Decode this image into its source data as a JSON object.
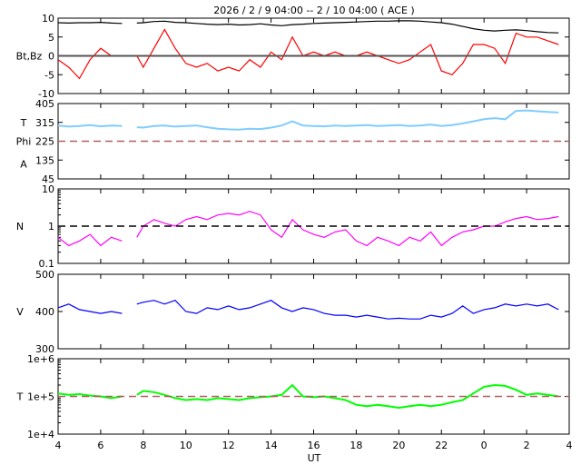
{
  "title": "2026 /  2 /  9   04:00 -- 2 / 10   04:00 ( ACE )",
  "chart_data": {
    "type": "line",
    "xlabel": "UT",
    "x_ticks": [
      "4",
      "6",
      "8",
      "10",
      "12",
      "14",
      "16",
      "18",
      "20",
      "22",
      "0",
      "2",
      "4"
    ],
    "xlim": [
      4,
      28
    ],
    "x": [
      4,
      4.5,
      5,
      5.5,
      6,
      6.5,
      7,
      7.7,
      8,
      8.5,
      9,
      9.5,
      10,
      10.5,
      11,
      11.5,
      12,
      12.5,
      13,
      13.5,
      14,
      14.5,
      15,
      15.5,
      16,
      16.5,
      17,
      17.5,
      18,
      18.5,
      19,
      19.5,
      20,
      20.5,
      21,
      21.5,
      22,
      22.5,
      23,
      23.5,
      24,
      24.5,
      25,
      25.5,
      26,
      26.5,
      27,
      27.5
    ],
    "gap_after_x": 7,
    "panels": [
      {
        "ylabel": "Bt,Bz",
        "yticks": [
          "10",
          "5",
          "0",
          "-5",
          "-10"
        ],
        "ylim": [
          -10,
          10
        ],
        "log": false,
        "ref": 0,
        "ref_style": "solid",
        "ref_color": "#555555",
        "series": [
          {
            "name": "Bt",
            "color": "#000000",
            "values": [
              8.8,
              8.7,
              8.8,
              8.8,
              8.9,
              8.7,
              8.6,
              8.7,
              8.8,
              9.1,
              9.2,
              8.9,
              8.8,
              8.6,
              8.4,
              8.3,
              8.4,
              8.2,
              8.3,
              8.5,
              8.2,
              8.0,
              8.3,
              8.4,
              8.6,
              8.7,
              8.8,
              8.9,
              9.0,
              9.1,
              9.2,
              9.2,
              9.3,
              9.3,
              9.2,
              9.0,
              8.8,
              8.4,
              7.8,
              7.2,
              6.8,
              6.6,
              6.8,
              6.9,
              6.7,
              6.4,
              6.2,
              6.1
            ]
          },
          {
            "name": "Bz",
            "color": "#ff0000",
            "values": [
              -1,
              -3,
              -6,
              -1,
              2,
              0,
              0,
              0,
              -3,
              2,
              7,
              2,
              -2,
              -3,
              -2,
              -4,
              -3,
              -4,
              -1,
              -3,
              1,
              -1,
              5,
              0,
              1,
              0,
              1,
              0,
              0,
              1,
              0,
              -1,
              -2,
              -1,
              1,
              3,
              -4,
              -5,
              -2,
              3,
              3,
              2,
              -2,
              6,
              5,
              5,
              4,
              3
            ]
          }
        ]
      },
      {
        "ylabel": [
          "T",
          "Phi",
          "A"
        ],
        "yticks": [
          "405",
          "315",
          "225",
          "135",
          "45"
        ],
        "ylim": [
          45,
          405
        ],
        "log": false,
        "ref": 225,
        "ref_style": "dashed",
        "ref_color": "#b06060",
        "series": [
          {
            "name": "Phi",
            "color": "#80ccff",
            "values": [
              300,
              295,
              298,
              302,
              296,
              300,
              298,
              292,
              290,
              298,
              300,
              295,
              298,
              300,
              292,
              285,
              282,
              280,
              285,
              283,
              290,
              300,
              320,
              300,
              298,
              296,
              300,
              298,
              300,
              302,
              298,
              300,
              302,
              298,
              300,
              305,
              298,
              302,
              310,
              320,
              330,
              335,
              330,
              370,
              372,
              368,
              365,
              362
            ]
          }
        ]
      },
      {
        "ylabel": "N",
        "yticks": [
          "10",
          "1",
          "0.1"
        ],
        "ylim": [
          0.1,
          10
        ],
        "log": true,
        "ref": 1,
        "ref_style": "dashed",
        "ref_color": "#000000",
        "series": [
          {
            "name": "N",
            "color": "#ff00ff",
            "values": [
              0.5,
              0.3,
              0.4,
              0.6,
              0.3,
              0.5,
              0.4,
              0.5,
              1,
              1.5,
              1.2,
              1,
              1.5,
              1.8,
              1.5,
              2,
              2.2,
              2,
              2.5,
              2,
              0.8,
              0.5,
              1.5,
              0.8,
              0.6,
              0.5,
              0.7,
              0.8,
              0.4,
              0.3,
              0.5,
              0.4,
              0.3,
              0.5,
              0.4,
              0.7,
              0.3,
              0.5,
              0.7,
              0.8,
              1,
              1,
              1.3,
              1.6,
              1.8,
              1.5,
              1.6,
              1.8
            ]
          }
        ]
      },
      {
        "ylabel": "V",
        "yticks": [
          "500",
          "400",
          "300"
        ],
        "ylim": [
          300,
          500
        ],
        "log": false,
        "ref": null,
        "series": [
          {
            "name": "V",
            "color": "#0000ff",
            "values": [
              410,
              420,
              405,
              400,
              395,
              400,
              395,
              420,
              425,
              430,
              420,
              430,
              400,
              395,
              410,
              405,
              415,
              405,
              410,
              420,
              430,
              410,
              400,
              410,
              405,
              395,
              390,
              390,
              385,
              390,
              385,
              380,
              382,
              380,
              380,
              390,
              385,
              395,
              415,
              395,
              405,
              410,
              420,
              415,
              420,
              415,
              420,
              405
            ]
          }
        ]
      },
      {
        "ylabel": "T",
        "yticks": [
          "1e+6",
          "1e+5",
          "1e+4"
        ],
        "ylim": [
          10000,
          1000000
        ],
        "log": true,
        "ref": 100000,
        "ref_style": "dashed",
        "ref_color": "#b06060",
        "series": [
          {
            "name": "T",
            "color": "#00ff00",
            "values": [
              120000,
              110000,
              115000,
              105000,
              100000,
              90000,
              100000,
              110000,
              140000,
              130000,
              110000,
              90000,
              80000,
              85000,
              80000,
              90000,
              85000,
              80000,
              90000,
              95000,
              100000,
              110000,
              200000,
              100000,
              95000,
              100000,
              90000,
              80000,
              60000,
              55000,
              60000,
              55000,
              50000,
              55000,
              60000,
              55000,
              60000,
              70000,
              80000,
              120000,
              180000,
              200000,
              190000,
              150000,
              110000,
              120000,
              110000,
              100000
            ]
          }
        ]
      }
    ]
  }
}
